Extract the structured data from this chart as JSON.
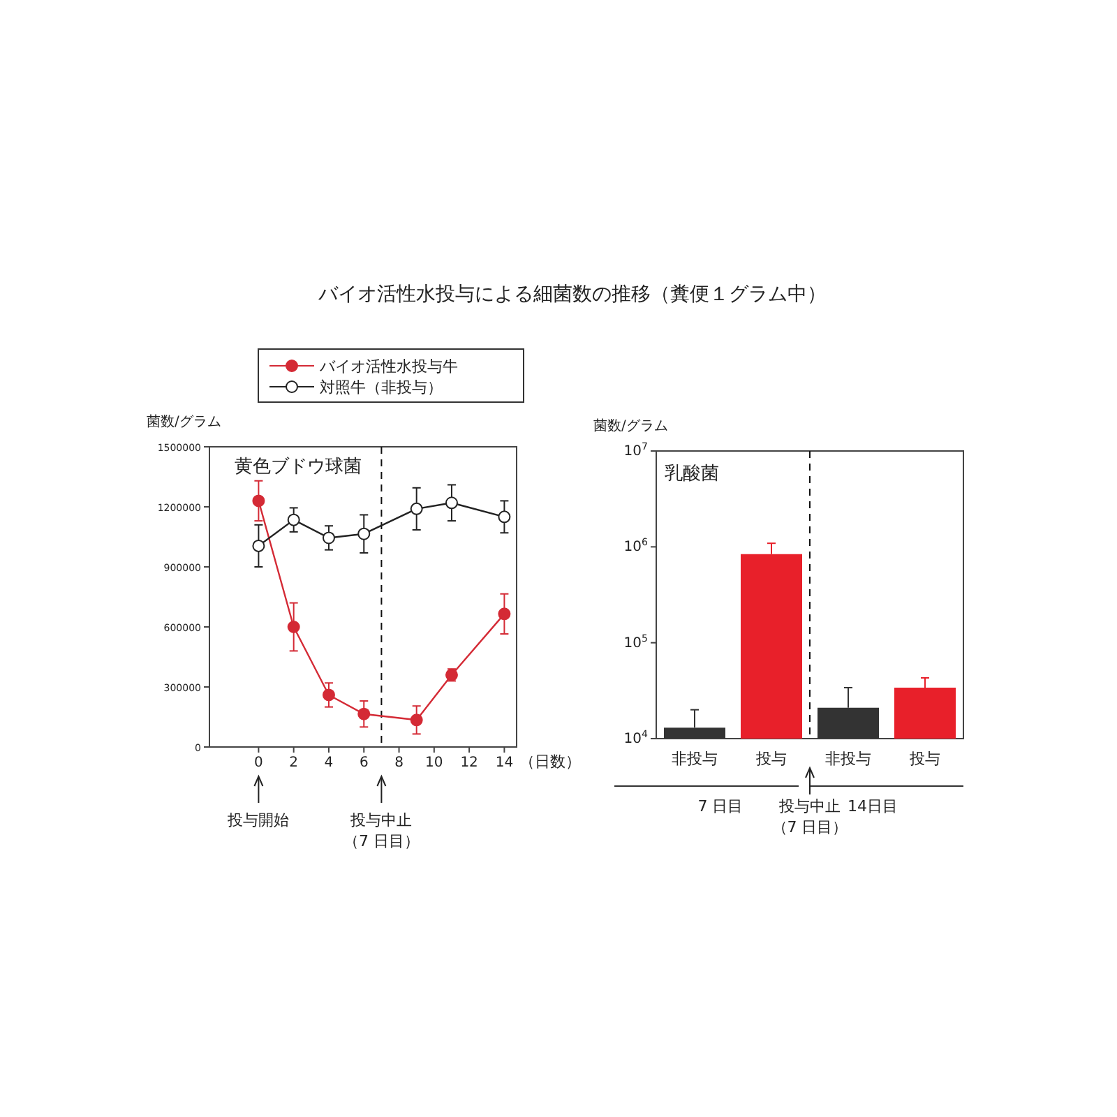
{
  "chart_data": [
    {
      "type": "line",
      "title": "バイオ活性水投与による細菌数の推移（糞便１グラム中）",
      "subtitle": "黄色ブドウ球菌",
      "ylabel": "菌数/グラム",
      "xlabel": "（日数）",
      "xlim": [
        -2.8,
        14.7
      ],
      "xticks": [
        0,
        2,
        4,
        6,
        8,
        10,
        12,
        14
      ],
      "ylim": [
        0,
        1500000
      ],
      "yticks": [
        0,
        300000,
        600000,
        900000,
        1200000,
        1500000
      ],
      "legend": "top",
      "marker": "circle",
      "line_style": "solid",
      "series": [
        {
          "name": "バイオ活性水投与牛",
          "color": "#d42a35",
          "x": [
            0,
            2,
            4,
            6,
            9,
            11,
            14
          ],
          "values": [
            1230000,
            600000,
            260000,
            165000,
            135000,
            360000,
            665000
          ],
          "errors": [
            100000,
            120000,
            60000,
            65000,
            70000,
            30000,
            100000
          ]
        },
        {
          "name": "対照牛（非投与）",
          "color": "#222222",
          "x": [
            0,
            2,
            4,
            6,
            9,
            11,
            14
          ],
          "values": [
            1005000,
            1135000,
            1045000,
            1065000,
            1190000,
            1220000,
            1150000
          ],
          "errors": [
            105000,
            60000,
            60000,
            95000,
            105000,
            90000,
            80000
          ]
        }
      ],
      "ref_lines": [
        {
          "axis": "x",
          "value": 7,
          "line_style": "dashed",
          "color": "#111111"
        }
      ],
      "annotations": [
        "投与開始",
        "投与中止",
        "（7 日目）"
      ]
    },
    {
      "type": "bar",
      "title": "乳酸菌",
      "ylabel": "菌数/グラム",
      "log": true,
      "categories": [
        "非投与",
        "投与",
        "非投与",
        "投与"
      ],
      "values": [
        13000,
        840000,
        21000,
        34000
      ],
      "colors": [
        "#333333",
        "#e8202a",
        "#333333",
        "#e8202a"
      ],
      "errors": [
        [
          13000,
          20000
        ],
        [
          840000,
          1090000
        ],
        [
          21000,
          34000
        ],
        [
          34000,
          43000
        ]
      ],
      "ylim": [
        10000,
        10000000
      ],
      "yticks": [
        {
          "value": 10000,
          "label": "10$^{4}$"
        },
        {
          "value": 100000,
          "label": "10$^{5}$"
        },
        {
          "value": 1000000,
          "label": "10$^{6}$"
        },
        {
          "value": 10000000,
          "label": "10$^{7}$"
        }
      ],
      "annotations": [
        "7 日目",
        "14日目",
        "投与中止",
        "（7 日目）"
      ]
    }
  ]
}
